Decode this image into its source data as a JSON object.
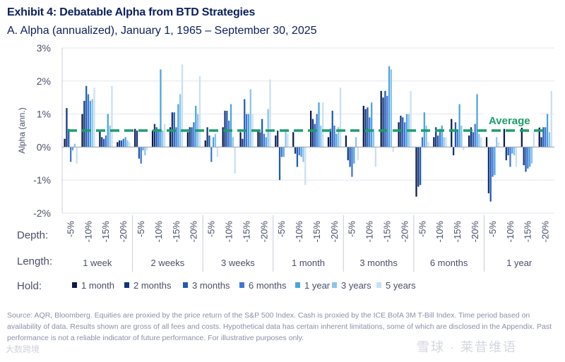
{
  "header": {
    "title": "Exhibit 4: Debatable Alpha from BTD Strategies",
    "subtitle": "A. Alpha (annualized), January 1, 1965 – September 30, 2025"
  },
  "colors": {
    "hold": [
      "#0b1a4a",
      "#12357a",
      "#1e5bb4",
      "#3f74d8",
      "#4aa3e0",
      "#8cc3ea",
      "#c8e0f4"
    ],
    "average": "#1a9e6a",
    "axis_text": "#4a4f6a",
    "grid": "#e3e5ec"
  },
  "chart_data": {
    "type": "bar",
    "ylabel": "Alpha (ann.)",
    "ylim": [
      -2,
      3
    ],
    "yticks": [
      -2,
      -1,
      0,
      1,
      2,
      3
    ],
    "ytick_labels": [
      "-2%",
      "-1%",
      "0%",
      "1%",
      "2%",
      "3%"
    ],
    "grid": true,
    "average_value": 0.5,
    "average_label": "Average",
    "depth_label": "Depth:",
    "length_label": "Length:",
    "hold_label": "Hold:",
    "depths": [
      "-5%",
      "-10%",
      "-15%",
      "-20%"
    ],
    "lengths": [
      "1 week",
      "2 weeks",
      "3 weeks",
      "1 month",
      "3 months",
      "6 months",
      "1 year"
    ],
    "holds": [
      "1 month",
      "2 months",
      "3 months",
      "6 months",
      "1 year",
      "3 years",
      "5 years"
    ],
    "values": [
      [
        [
          0.25,
          1.18,
          0.55,
          -0.45,
          -0.1,
          0.1,
          -0.5
        ],
        [
          1.0,
          1.4,
          1.85,
          1.6,
          1.4,
          1.45,
          1.8
        ],
        [
          0.5,
          0.3,
          0.25,
          0.35,
          1.0,
          0.65,
          1.85
        ],
        [
          0.15,
          0.2,
          0.2,
          0.25,
          0.3,
          0.2,
          0.15
        ]
      ],
      [
        [
          0.55,
          0.5,
          -0.35,
          -0.5,
          -0.1,
          -0.25,
          -0.1
        ],
        [
          0.5,
          0.7,
          0.6,
          0.55,
          2.35,
          0.5,
          0.7
        ],
        [
          0.6,
          1.05,
          1.05,
          0.6,
          1.3,
          1.6,
          2.5
        ],
        [
          0.45,
          0.6,
          0.6,
          0.75,
          1.25,
          1.0,
          2.15
        ]
      ],
      [
        [
          0.2,
          0.6,
          0.35,
          -0.45,
          0.3,
          0.4,
          -0.3
        ],
        [
          0.6,
          1.1,
          1.1,
          0.8,
          1.3,
          0.3,
          -0.8
        ],
        [
          0.45,
          0.25,
          1.45,
          1.0,
          1.0,
          1.75,
          1.0
        ],
        [
          0.5,
          0.45,
          0.85,
          0.4,
          0.3,
          1.15,
          2.05
        ]
      ],
      [
        [
          0.35,
          0.5,
          -1.0,
          -0.3,
          -0.3,
          0.5,
          0.4
        ],
        [
          0.45,
          -0.2,
          -0.6,
          -0.25,
          -0.3,
          -0.45,
          -1.15
        ],
        [
          1.1,
          0.85,
          0.7,
          1.0,
          1.35,
          0.65,
          1.35
        ],
        [
          0.3,
          0.55,
          1.1,
          0.65,
          0.4,
          0.6,
          1.8
        ]
      ],
      [
        [
          0.35,
          -0.4,
          -0.6,
          -0.9,
          -0.5,
          0.3,
          -0.4
        ],
        [
          1.25,
          1.15,
          1.2,
          0.9,
          1.35,
          0.55,
          -0.6
        ],
        [
          1.7,
          1.5,
          1.7,
          1.55,
          2.45,
          2.35,
          -0.15
        ],
        [
          0.75,
          0.95,
          0.9,
          0.75,
          1.0,
          1.0,
          1.7
        ]
      ],
      [
        [
          -1.5,
          -1.2,
          -1.15,
          0.3,
          1.05,
          0.65,
          0.15
        ],
        [
          0.3,
          0.6,
          0.35,
          0.55,
          0.65,
          0.3,
          0.3
        ],
        [
          0.85,
          -0.25,
          0.75,
          0.5,
          1.3,
          0.65,
          -0.1
        ],
        [
          0.35,
          0.6,
          0.45,
          0.7,
          1.6,
          0.4,
          0.3
        ]
      ],
      [
        [
          0.3,
          -1.4,
          -1.65,
          -0.9,
          -0.85,
          0.3,
          0.15
        ],
        [
          0.55,
          -0.4,
          -0.25,
          -0.6,
          -0.2,
          -0.25,
          -0.6
        ],
        [
          0.6,
          -0.55,
          -0.75,
          -0.65,
          -0.6,
          -0.5,
          0.45
        ],
        [
          0.6,
          0.3,
          0.6,
          0.6,
          1.0,
          0.45,
          1.7
        ]
      ]
    ]
  },
  "footer": {
    "source": "Source: AQR, Bloomberg. Equities are proxied by the price return of the S&P 500 Index. Cash is proxied by the ICE BofA 3M T-Bill Index. Time period based on availability of data. Results shown are gross of all fees and costs. Hypothetical data has certain inherent limitations, some of which are disclosed in the Appendix. Past performance is not a reliable indicator of future performance. For illustrative purposes only.",
    "watermark_left": "大数跨境",
    "watermark_right": "雪球 · 莱昔维语"
  }
}
